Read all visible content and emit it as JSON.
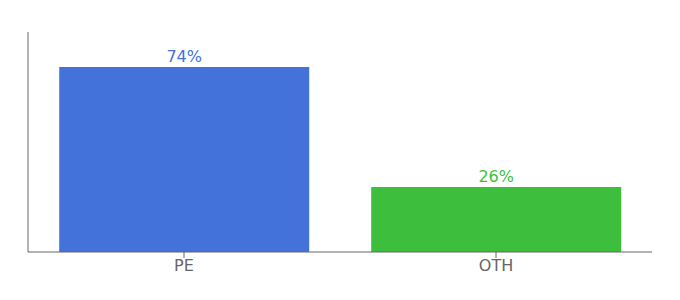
{
  "chart_data": {
    "type": "bar",
    "categories": [
      "PE",
      "OTH"
    ],
    "values": [
      74,
      26
    ],
    "value_labels": [
      "74%",
      "26%"
    ],
    "data_labels": true,
    "colors": [
      "#4472db",
      "#3dbf3d"
    ],
    "ylim": [
      0,
      88
    ],
    "tick_labels": "x",
    "grid": false
  }
}
